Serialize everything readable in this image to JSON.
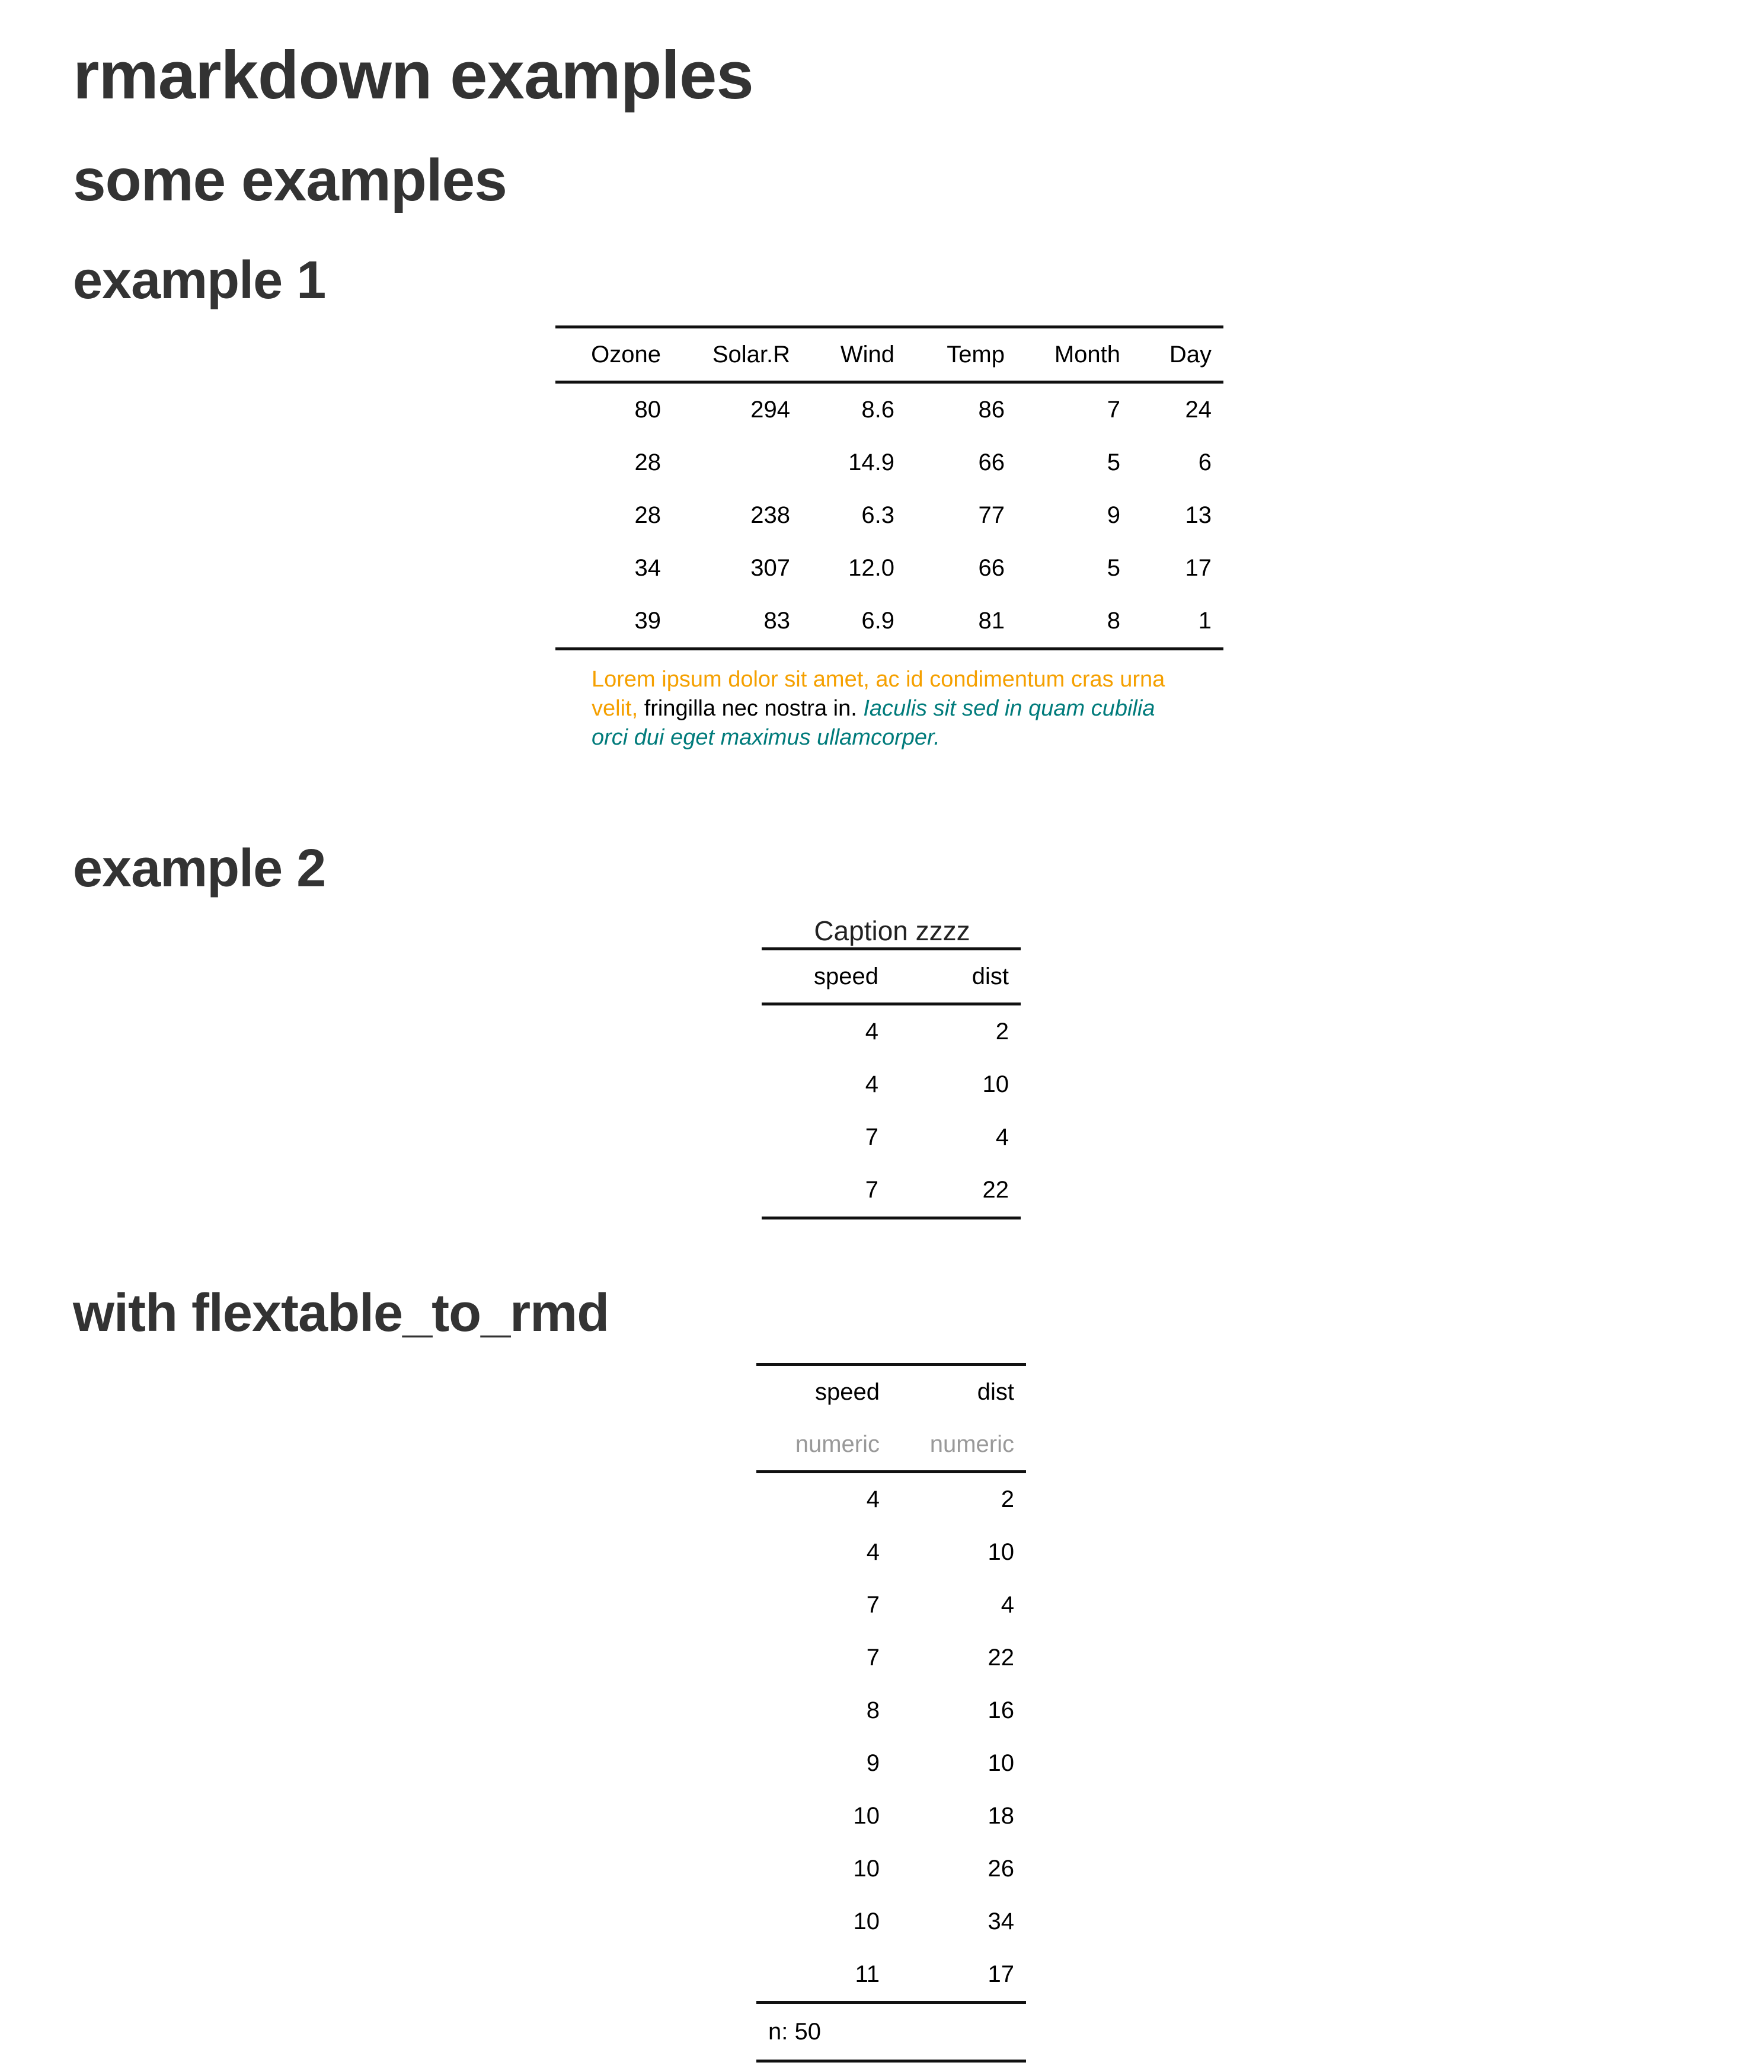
{
  "doc": {
    "title": "rmarkdown examples",
    "section": "some examples",
    "example1_heading": "example 1",
    "example2_heading": "example 2",
    "flextable_heading": "with flextable_to_rmd"
  },
  "colors": {
    "heading": "#333333",
    "rule": "#111111",
    "footnote_orange": "#f5a000",
    "footnote_teal": "#007b7b",
    "type_label_gray": "#999999"
  },
  "table1": {
    "headers": [
      "Ozone",
      "Solar.R",
      "Wind",
      "Temp",
      "Month",
      "Day"
    ],
    "rows": [
      [
        "80",
        "294",
        "8.6",
        "86",
        "7",
        "24"
      ],
      [
        "28",
        "",
        "14.9",
        "66",
        "5",
        "6"
      ],
      [
        "28",
        "238",
        "6.3",
        "77",
        "9",
        "13"
      ],
      [
        "34",
        "307",
        "12.0",
        "66",
        "5",
        "17"
      ],
      [
        "39",
        "83",
        "6.9",
        "81",
        "8",
        "1"
      ]
    ],
    "footnote": {
      "orange": "Lorem ipsum dolor sit amet, ac id condimentum cras urna velit,",
      "plain": " fringilla nec nostra in. ",
      "teal": "Iaculis sit sed in quam cubilia orci dui eget maximus ullamcorper."
    }
  },
  "table2": {
    "caption": "Caption zzzz",
    "headers": [
      "speed",
      "dist"
    ],
    "rows": [
      [
        "4",
        "2"
      ],
      [
        "4",
        "10"
      ],
      [
        "7",
        "4"
      ],
      [
        "7",
        "22"
      ]
    ]
  },
  "table3": {
    "headers": [
      "speed",
      "dist"
    ],
    "types": [
      "numeric",
      "numeric"
    ],
    "rows": [
      [
        "4",
        "2"
      ],
      [
        "4",
        "10"
      ],
      [
        "7",
        "4"
      ],
      [
        "7",
        "22"
      ],
      [
        "8",
        "16"
      ],
      [
        "9",
        "10"
      ],
      [
        "10",
        "18"
      ],
      [
        "10",
        "26"
      ],
      [
        "10",
        "34"
      ],
      [
        "11",
        "17"
      ]
    ],
    "footer": "n: 50"
  }
}
